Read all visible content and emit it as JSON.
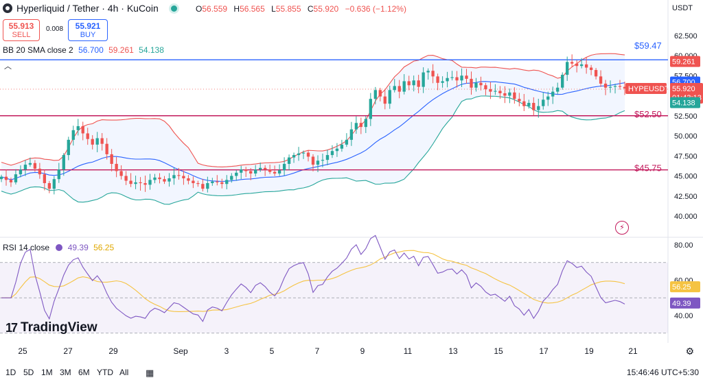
{
  "header": {
    "symbol_title": "Hyperliquid / Tether · 4h · KuCoin",
    "ohlc": [
      {
        "label": "O",
        "value": "56.559"
      },
      {
        "label": "H",
        "value": "56.565"
      },
      {
        "label": "L",
        "value": "55.855"
      },
      {
        "label": "C",
        "value": "55.920"
      },
      {
        "label": "",
        "value": "−0.636 (−1.12%)"
      }
    ],
    "sell_price": "55.913",
    "sell_label": "SELL",
    "spread": "0.008",
    "buy_price": "55.921",
    "buy_label": "BUY",
    "currency": "USDT"
  },
  "indicators": {
    "bb_name": "BB 20 SMA close 2",
    "bb_basis": "56.700",
    "bb_upper": "59.261",
    "bb_lower": "54.138",
    "rsi_name": "RSI 14 close",
    "rsi_value": "49.39",
    "rsi_ma": "56.25"
  },
  "footer": {
    "brand": "TradingView",
    "timeframes": [
      "1D",
      "5D",
      "1M",
      "3M",
      "6M",
      "YTD",
      "All"
    ],
    "clock": "15:46:46 UTC+5:30"
  },
  "colors": {
    "up": "#26a69a",
    "down": "#ef5350",
    "basis": "#2962ff",
    "upper": "#ef5350",
    "lower": "#26a69a",
    "rsi": "#7e57c2",
    "rsi_ma": "#f5c342",
    "level_line": "#c2185b",
    "resistance": "#2962ff"
  },
  "chart_data": [
    {
      "type": "candlestick",
      "symbol": "HYPEUSDT",
      "title": "Hyperliquid / Tether · 4h · KuCoin",
      "x_ticks": [
        "25",
        "27",
        "29",
        "Sep",
        "3",
        "5",
        "7",
        "9",
        "11",
        "13",
        "15",
        "17",
        "19",
        "21"
      ],
      "y_ticks": [
        "40.000",
        "42.500",
        "45.000",
        "47.500",
        "50.000",
        "52.500",
        "55.000",
        "57.500",
        "60.000",
        "62.500"
      ],
      "ylim": [
        37.5,
        63.75
      ],
      "close": [
        44.9,
        44.5,
        44.2,
        45.2,
        45.8,
        46.4,
        46.6,
        45.9,
        45.2,
        44.1,
        43.4,
        44.6,
        45.8,
        47.6,
        49.5,
        50.7,
        51.2,
        50.3,
        49.6,
        48.9,
        49.7,
        49.0,
        47.7,
        46.5,
        45.6,
        45.0,
        44.4,
        44.0,
        44.2,
        44.1,
        43.9,
        44.5,
        44.8,
        44.6,
        44.3,
        44.7,
        45.1,
        45.0,
        44.7,
        44.4,
        44.1,
        44.0,
        43.4,
        44.1,
        44.3,
        44.2,
        44.0,
        44.5,
        45.0,
        45.4,
        45.8,
        45.6,
        45.3,
        45.8,
        46.0,
        45.8,
        45.5,
        45.3,
        45.7,
        46.5,
        47.3,
        47.6,
        47.8,
        47.9,
        47.4,
        46.4,
        46.9,
        47.0,
        47.6,
        48.1,
        48.4,
        48.9,
        49.5,
        50.8,
        51.6,
        51.1,
        52.1,
        54.6,
        55.7,
        54.9,
        54.0,
        55.7,
        56.2,
        55.5,
        56.8,
        56.3,
        56.9,
        56.1,
        57.9,
        58.1,
        57.4,
        56.6,
        56.8,
        57.2,
        57.3,
        56.9,
        57.5,
        57.1,
        56.0,
        56.6,
        56.3,
        55.8,
        55.5,
        55.6,
        55.3,
        55.0,
        55.4,
        54.6,
        54.3,
        53.7,
        54.1,
        53.2,
        53.7,
        54.5,
        54.9,
        55.5,
        56.0,
        57.6,
        59.2,
        59.0,
        58.7,
        58.9,
        58.5,
        58.2,
        57.4,
        56.5,
        56.0,
        56.1,
        56.2,
        56.1,
        55.9
      ],
      "indicators": {
        "bb": {
          "name": "BB 20 SMA close 2",
          "basis": 56.7,
          "upper": 59.261,
          "lower": 54.138
        },
        "levels": [
          {
            "label": "$59.47",
            "value": 59.47
          },
          {
            "label": "$52.50",
            "value": 52.5
          },
          {
            "label": "$45.75",
            "value": 45.75
          }
        ],
        "last_price_tag": {
          "symbol": "HYPEUSDT",
          "price": "55.920",
          "countdown": "01:43:13"
        }
      }
    },
    {
      "type": "line",
      "title": "RSI 14 close",
      "y_ticks": [
        "40.00",
        "60.00",
        "80.00"
      ],
      "ylim": [
        28,
        82
      ],
      "bands": [
        30,
        50,
        70
      ],
      "series": [
        {
          "name": "RSI",
          "last": 49.39
        },
        {
          "name": "MA",
          "last": 56.25
        }
      ]
    }
  ]
}
